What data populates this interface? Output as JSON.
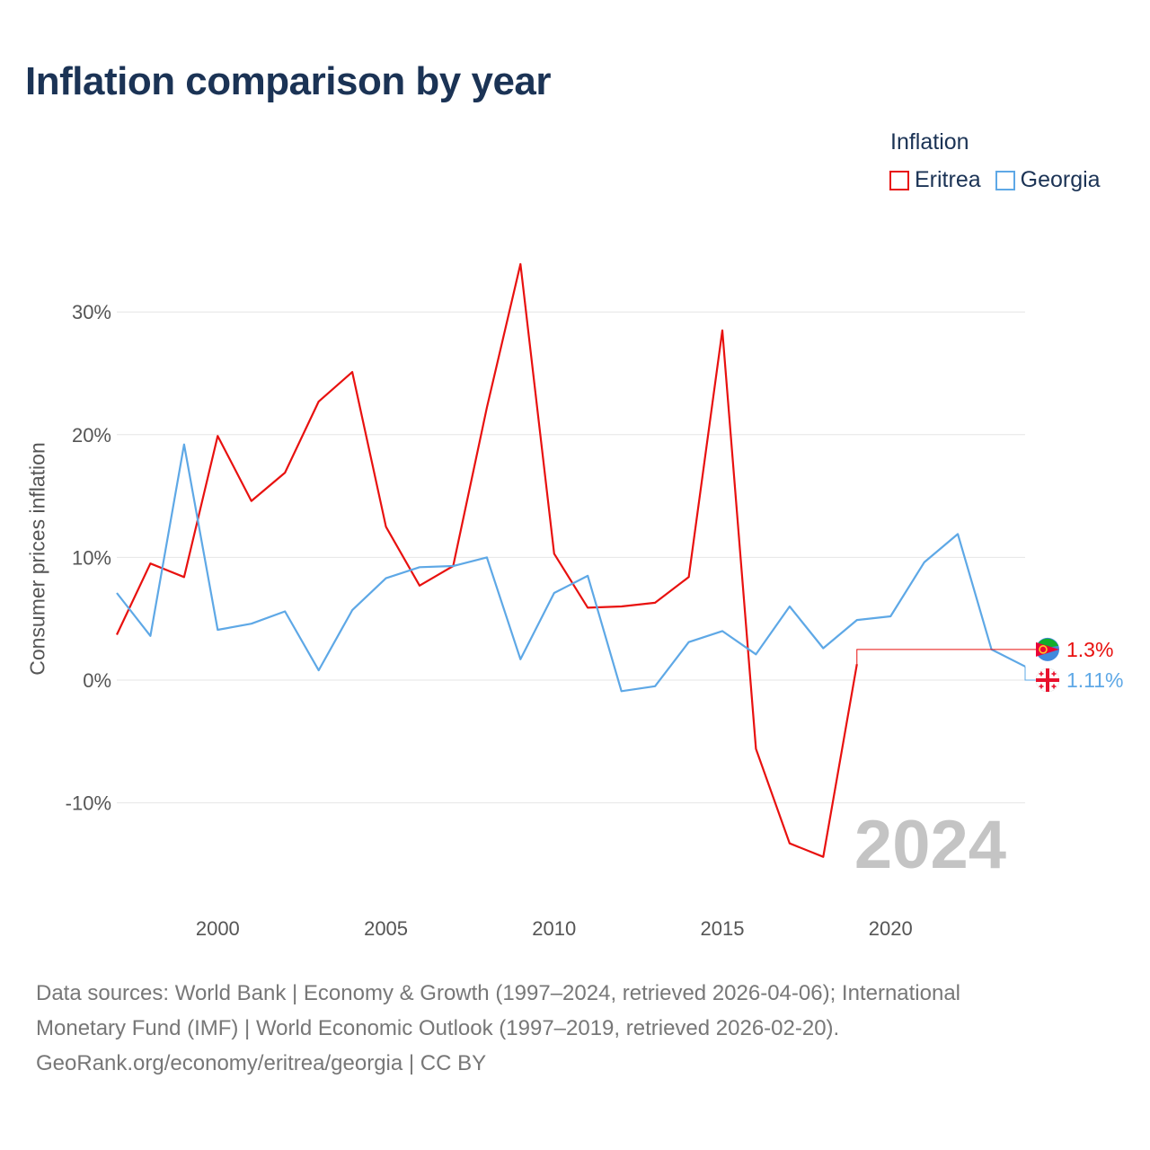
{
  "title": "Inflation comparison by year",
  "legend_title": "Inflation",
  "colors": {
    "eritrea": "#e8110f",
    "georgia": "#5ea8e6",
    "grid": "#e6e6e6",
    "title": "#1b3355"
  },
  "source": {
    "line1": "Data sources: World Bank | Economy & Growth (1997–2024, retrieved 2026-04-06); International",
    "line2": "Monetary Fund (IMF) | World Economic Outlook (1997–2019, retrieved 2026-02-20).",
    "line3": "GeoRank.org/economy/eritrea/georgia | CC BY"
  },
  "chart_data": {
    "type": "line",
    "title": "Inflation comparison by year",
    "xlabel": "",
    "ylabel": "Consumer prices inflation",
    "xlim": [
      1997,
      2024
    ],
    "ylim": [
      -18,
      35
    ],
    "y_ticks": [
      -10,
      0,
      10,
      20,
      30
    ],
    "y_tick_labels": [
      "-10%",
      "0%",
      "10%",
      "20%",
      "30%"
    ],
    "x_ticks": [
      2000,
      2005,
      2010,
      2015,
      2020
    ],
    "x_tick_labels": [
      "2000",
      "2005",
      "2010",
      "2015",
      "2020"
    ],
    "year_label": "2024",
    "series": [
      {
        "name": "Eritrea",
        "color": "#e8110f",
        "end_label": "1.3%",
        "end_value": 2.5,
        "x": [
          1997,
          1998,
          1999,
          2000,
          2001,
          2002,
          2003,
          2004,
          2005,
          2006,
          2007,
          2008,
          2009,
          2010,
          2011,
          2012,
          2013,
          2014,
          2015,
          2016,
          2017,
          2018,
          2019
        ],
        "values": [
          3.7,
          9.5,
          8.4,
          19.9,
          14.6,
          16.9,
          22.7,
          25.1,
          12.5,
          7.7,
          9.3,
          22.2,
          33.9,
          10.3,
          5.9,
          6.0,
          6.3,
          8.4,
          28.5,
          -5.6,
          -13.3,
          -14.4,
          1.3
        ]
      },
      {
        "name": "Georgia",
        "color": "#5ea8e6",
        "end_label": "1.11%",
        "end_value": 0.0,
        "x": [
          1997,
          1998,
          1999,
          2000,
          2001,
          2002,
          2003,
          2004,
          2005,
          2006,
          2007,
          2008,
          2009,
          2010,
          2011,
          2012,
          2013,
          2014,
          2015,
          2016,
          2017,
          2018,
          2019,
          2020,
          2021,
          2022,
          2023,
          2024
        ],
        "values": [
          7.1,
          3.6,
          19.2,
          4.1,
          4.6,
          5.6,
          0.8,
          5.7,
          8.3,
          9.2,
          9.3,
          10.0,
          1.7,
          7.1,
          8.5,
          -0.9,
          -0.5,
          3.1,
          4.0,
          2.1,
          6.0,
          2.6,
          4.9,
          5.2,
          9.6,
          11.9,
          2.5,
          1.11
        ]
      }
    ]
  }
}
